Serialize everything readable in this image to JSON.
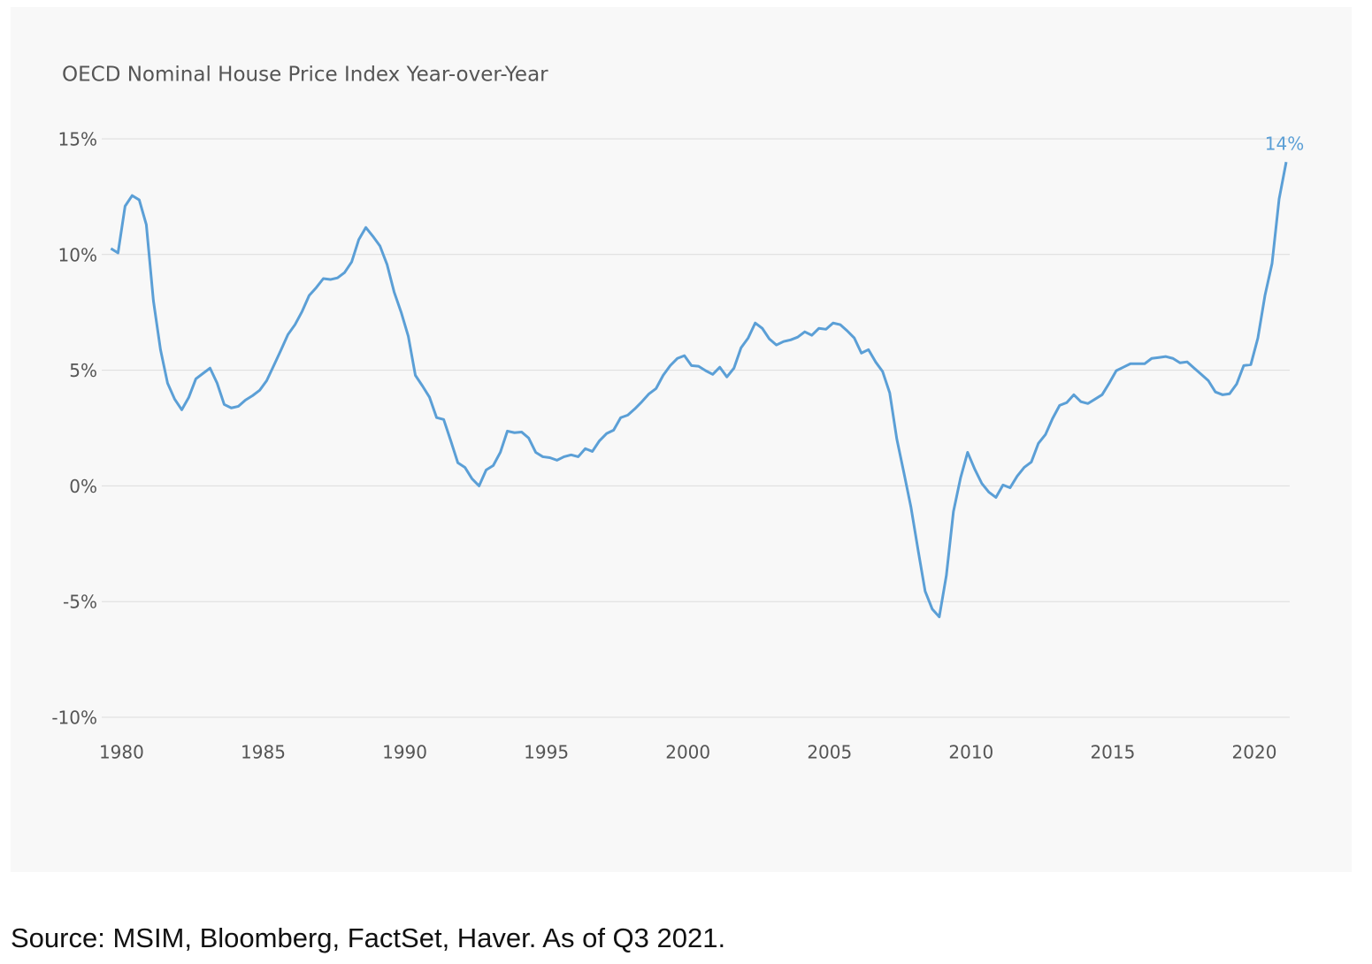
{
  "chart_data": {
    "type": "line",
    "title": "OECD Nominal House Price Index Year-over-Year",
    "source": "Source: MSIM, Bloomberg, FactSet, Haver. As of Q3 2021.",
    "color": "#5b9fd6",
    "grid": true,
    "x": [
      1979.625,
      1979.875,
      1980.125,
      1980.375,
      1980.625,
      1980.875,
      1981.125,
      1981.375,
      1981.625,
      1981.875,
      1982.125,
      1982.375,
      1982.625,
      1982.875,
      1983.125,
      1983.375,
      1983.625,
      1983.875,
      1984.125,
      1984.375,
      1984.625,
      1984.875,
      1985.125,
      1985.375,
      1985.625,
      1985.875,
      1986.125,
      1986.375,
      1986.625,
      1986.875,
      1987.125,
      1987.375,
      1987.625,
      1987.875,
      1988.125,
      1988.375,
      1988.625,
      1988.875,
      1989.125,
      1989.375,
      1989.625,
      1989.875,
      1990.125,
      1990.375,
      1990.625,
      1990.875,
      1991.125,
      1991.375,
      1991.625,
      1991.875,
      1992.125,
      1992.375,
      1992.625,
      1992.875,
      1993.125,
      1993.375,
      1993.625,
      1993.875,
      1994.125,
      1994.375,
      1994.625,
      1994.875,
      1995.125,
      1995.375,
      1995.625,
      1995.875,
      1996.125,
      1996.375,
      1996.625,
      1996.875,
      1997.125,
      1997.375,
      1997.625,
      1997.875,
      1998.125,
      1998.375,
      1998.625,
      1998.875,
      1999.125,
      1999.375,
      1999.625,
      1999.875,
      2000.125,
      2000.375,
      2000.625,
      2000.875,
      2001.125,
      2001.375,
      2001.625,
      2001.875,
      2002.125,
      2002.375,
      2002.625,
      2002.875,
      2003.125,
      2003.375,
      2003.625,
      2003.875,
      2004.125,
      2004.375,
      2004.625,
      2004.875,
      2005.125,
      2005.375,
      2005.625,
      2005.875,
      2006.125,
      2006.375,
      2006.625,
      2006.875,
      2007.125,
      2007.375,
      2007.625,
      2007.875,
      2008.125,
      2008.375,
      2008.625,
      2008.875,
      2009.125,
      2009.375,
      2009.625,
      2009.875,
      2010.125,
      2010.375,
      2010.625,
      2010.875,
      2011.125,
      2011.375,
      2011.625,
      2011.875,
      2012.125,
      2012.375,
      2012.625,
      2012.875,
      2013.125,
      2013.375,
      2013.625,
      2013.875,
      2014.125,
      2014.375,
      2014.625,
      2014.875,
      2015.125,
      2015.375,
      2015.625,
      2015.875,
      2016.125,
      2016.375,
      2016.625,
      2016.875,
      2017.125,
      2017.375,
      2017.625,
      2017.875,
      2018.125,
      2018.375,
      2018.625,
      2018.875,
      2019.125,
      2019.375,
      2019.625,
      2019.875,
      2020.125,
      2020.375,
      2020.625,
      2020.875,
      2021.125
    ],
    "values": [
      10.26,
      10.07,
      12.09,
      12.55,
      12.36,
      11.29,
      8.0,
      5.89,
      4.44,
      3.75,
      3.29,
      3.83,
      4.63,
      4.86,
      5.09,
      4.44,
      3.52,
      3.37,
      3.44,
      3.71,
      3.9,
      4.13,
      4.55,
      5.2,
      5.86,
      6.54,
      6.97,
      7.54,
      8.23,
      8.57,
      8.96,
      8.92,
      8.99,
      9.22,
      9.68,
      10.64,
      11.17,
      10.79,
      10.37,
      9.57,
      8.38,
      7.5,
      6.47,
      4.78,
      4.32,
      3.83,
      2.95,
      2.87,
      1.95,
      1.0,
      0.8,
      0.31,
      0.0,
      0.69,
      0.88,
      1.45,
      2.37,
      2.3,
      2.33,
      2.07,
      1.45,
      1.26,
      1.22,
      1.11,
      1.26,
      1.34,
      1.26,
      1.61,
      1.49,
      1.95,
      2.26,
      2.41,
      2.95,
      3.06,
      3.33,
      3.64,
      3.98,
      4.21,
      4.78,
      5.2,
      5.51,
      5.63,
      5.2,
      5.17,
      4.98,
      4.82,
      5.13,
      4.71,
      5.09,
      5.97,
      6.39,
      7.04,
      6.81,
      6.35,
      6.09,
      6.24,
      6.31,
      6.43,
      6.66,
      6.51,
      6.81,
      6.77,
      7.04,
      6.97,
      6.7,
      6.39,
      5.74,
      5.89,
      5.36,
      4.94,
      4.02,
      2.03,
      0.57,
      -0.92,
      -2.76,
      -4.55,
      -5.32,
      -5.66,
      -3.87,
      -1.11,
      0.34,
      1.45,
      0.73,
      0.11,
      -0.27,
      -0.5,
      0.04,
      -0.08,
      0.42,
      0.8,
      1.03,
      1.84,
      2.22,
      2.91,
      3.48,
      3.6,
      3.94,
      3.64,
      3.56,
      3.75,
      3.94,
      4.44,
      4.98,
      5.13,
      5.28,
      5.28,
      5.28,
      5.51,
      5.55,
      5.59,
      5.51,
      5.32,
      5.36,
      5.09,
      4.82,
      4.55,
      4.06,
      3.94,
      3.98,
      4.4,
      5.2,
      5.24,
      6.39,
      8.23,
      9.61,
      12.4,
      14
    ],
    "value_labels": [
      null,
      null,
      null,
      null,
      null,
      null,
      null,
      null,
      null,
      null,
      null,
      null,
      null,
      null,
      null,
      null,
      null,
      null,
      null,
      null,
      null,
      null,
      null,
      null,
      null,
      null,
      null,
      null,
      null,
      null,
      null,
      null,
      null,
      null,
      null,
      null,
      null,
      null,
      null,
      null,
      null,
      null,
      null,
      null,
      null,
      null,
      null,
      null,
      null,
      null,
      null,
      null,
      null,
      null,
      null,
      null,
      null,
      null,
      null,
      null,
      null,
      null,
      null,
      null,
      null,
      null,
      null,
      null,
      null,
      null,
      null,
      null,
      null,
      null,
      null,
      null,
      null,
      null,
      null,
      null,
      null,
      null,
      null,
      null,
      null,
      null,
      null,
      null,
      null,
      null,
      null,
      null,
      null,
      null,
      null,
      null,
      null,
      null,
      null,
      null,
      null,
      null,
      null,
      null,
      null,
      null,
      null,
      null,
      null,
      null,
      null,
      null,
      null,
      null,
      null,
      null,
      null,
      null,
      null,
      null,
      null,
      null,
      null,
      null,
      null,
      null,
      null,
      null,
      null,
      null,
      null,
      null,
      null,
      null,
      null,
      null,
      null,
      null,
      null,
      null,
      null,
      null,
      null,
      null,
      null,
      null,
      null,
      null,
      null,
      null,
      null,
      null,
      null,
      null,
      null,
      null,
      null,
      null,
      null,
      null,
      null,
      null,
      null,
      null,
      null,
      null,
      "14%"
    ],
    "xlim": [
      1979.3,
      2021.25
    ],
    "xticks": [
      1980,
      1985,
      1990,
      1995,
      2000,
      2005,
      2010,
      2015,
      2020
    ],
    "ylim": [
      -10,
      15
    ],
    "yticks": [
      {
        "value": -10,
        "label": "-10%"
      },
      {
        "value": -5,
        "label": "-5%"
      },
      {
        "value": 0,
        "label": "0%"
      },
      {
        "value": 5,
        "label": "5%"
      },
      {
        "value": 10,
        "label": "10%"
      },
      {
        "value": 15,
        "label": "15%"
      }
    ]
  }
}
